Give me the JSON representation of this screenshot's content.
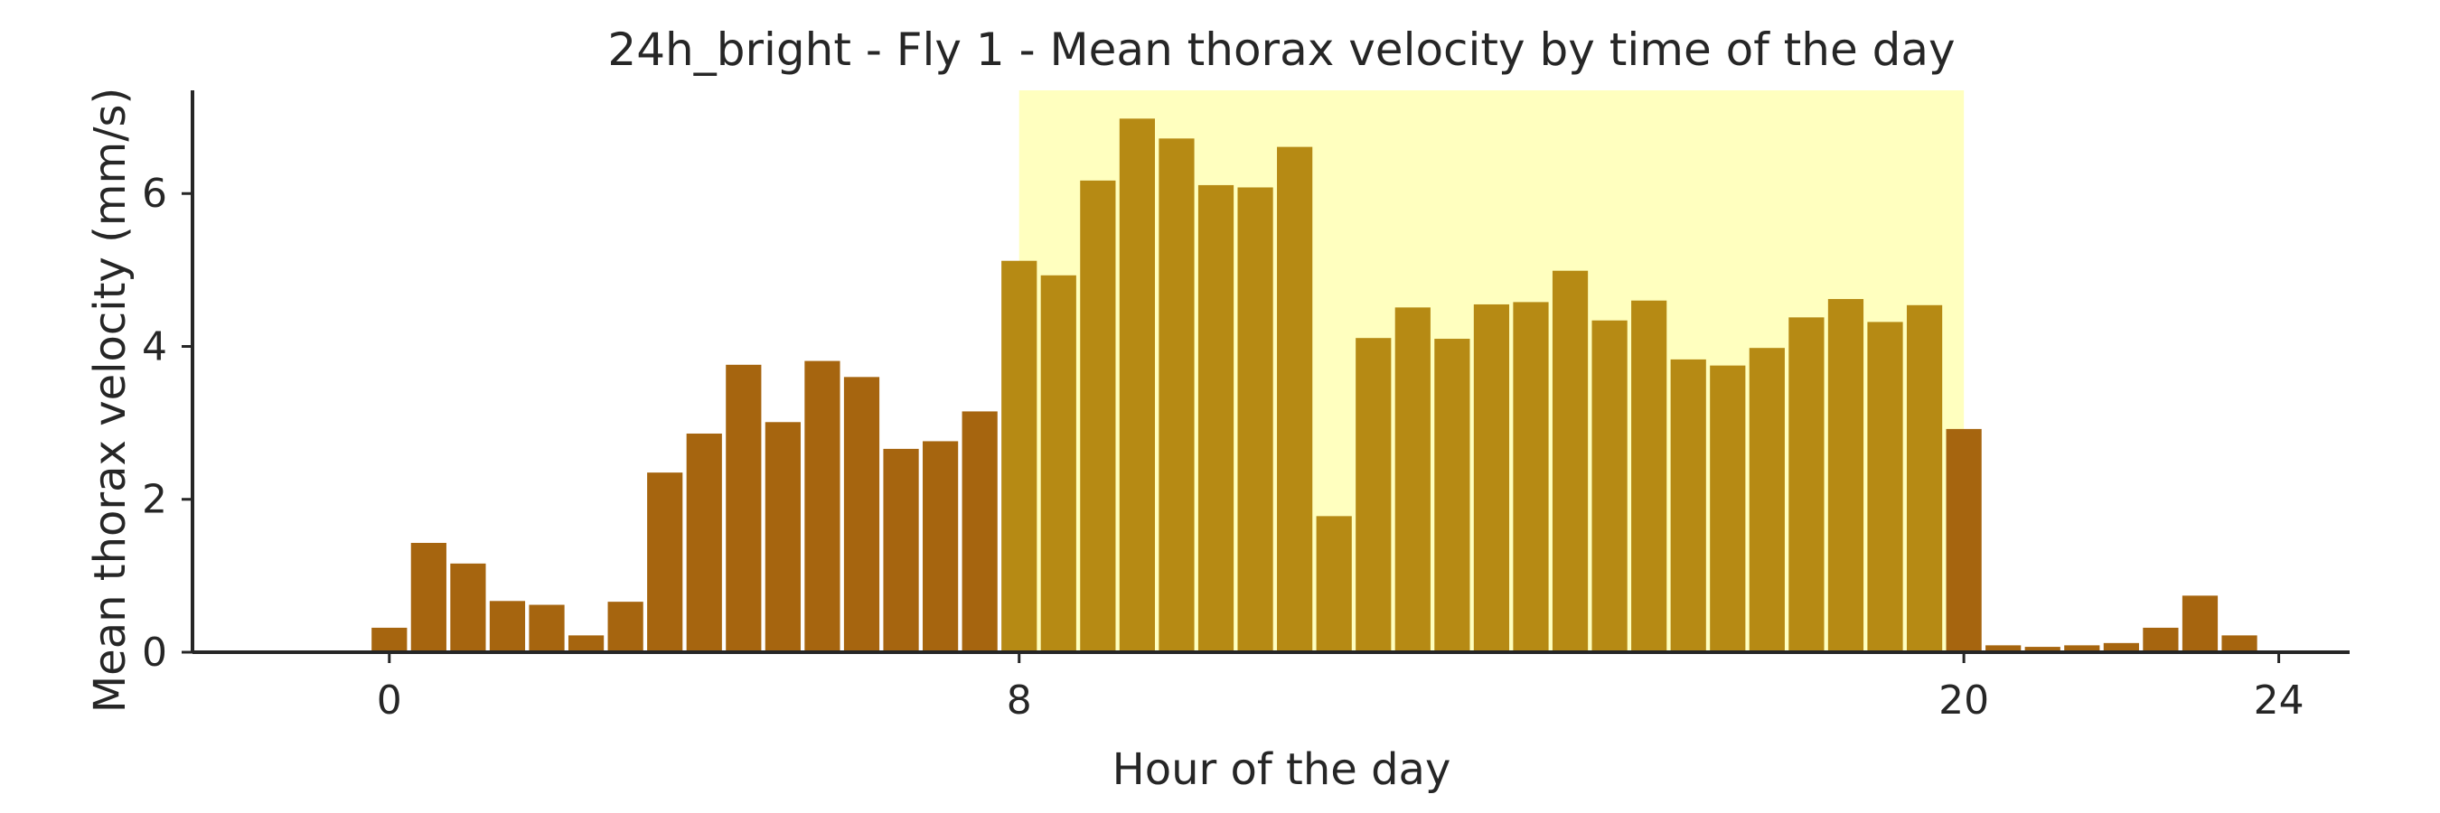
{
  "chart_data": {
    "type": "bar",
    "title": "24h_bright - Fly 1 - Mean thorax velocity by time of the day",
    "xlabel": "Hour of the day",
    "ylabel": "Mean thorax velocity (mm/s)",
    "xlim": [
      -2.5,
      24.9
    ],
    "ylim": [
      0,
      7.35
    ],
    "xticks": [
      0,
      8,
      20,
      24
    ],
    "yticks": [
      0,
      2,
      4,
      6
    ],
    "bar_width_hours": 0.45,
    "highlight_band": {
      "start": 8,
      "end": 20,
      "color": "#ffffbf"
    },
    "colors": {
      "bar": "#a6650f",
      "bar_in_band": "#b68a14",
      "axis": "#262626"
    },
    "grid": false,
    "x": [
      0,
      0.5,
      1,
      1.5,
      2,
      2.5,
      3,
      3.5,
      4,
      4.5,
      5,
      5.5,
      6,
      6.5,
      7,
      7.5,
      8,
      8.5,
      9,
      9.5,
      10,
      10.5,
      11,
      11.5,
      12,
      12.5,
      13,
      13.5,
      14,
      14.5,
      15,
      15.5,
      16,
      16.5,
      17,
      17.5,
      18,
      18.5,
      19,
      19.5,
      20,
      20.5,
      21,
      21.5,
      22,
      22.5,
      23,
      23.5
    ],
    "values": [
      0.32,
      1.43,
      1.16,
      0.67,
      0.62,
      0.22,
      0.66,
      2.35,
      2.86,
      3.76,
      3.01,
      3.81,
      3.6,
      2.66,
      2.76,
      3.15,
      5.12,
      4.93,
      6.17,
      6.98,
      6.72,
      6.11,
      6.08,
      6.61,
      1.78,
      4.11,
      4.51,
      4.1,
      4.55,
      4.58,
      4.99,
      4.34,
      4.6,
      3.83,
      3.75,
      3.98,
      4.38,
      4.62,
      4.32,
      4.54,
      2.92,
      0.09,
      0.07,
      0.09,
      0.12,
      0.32,
      0.74,
      0.22
    ]
  }
}
